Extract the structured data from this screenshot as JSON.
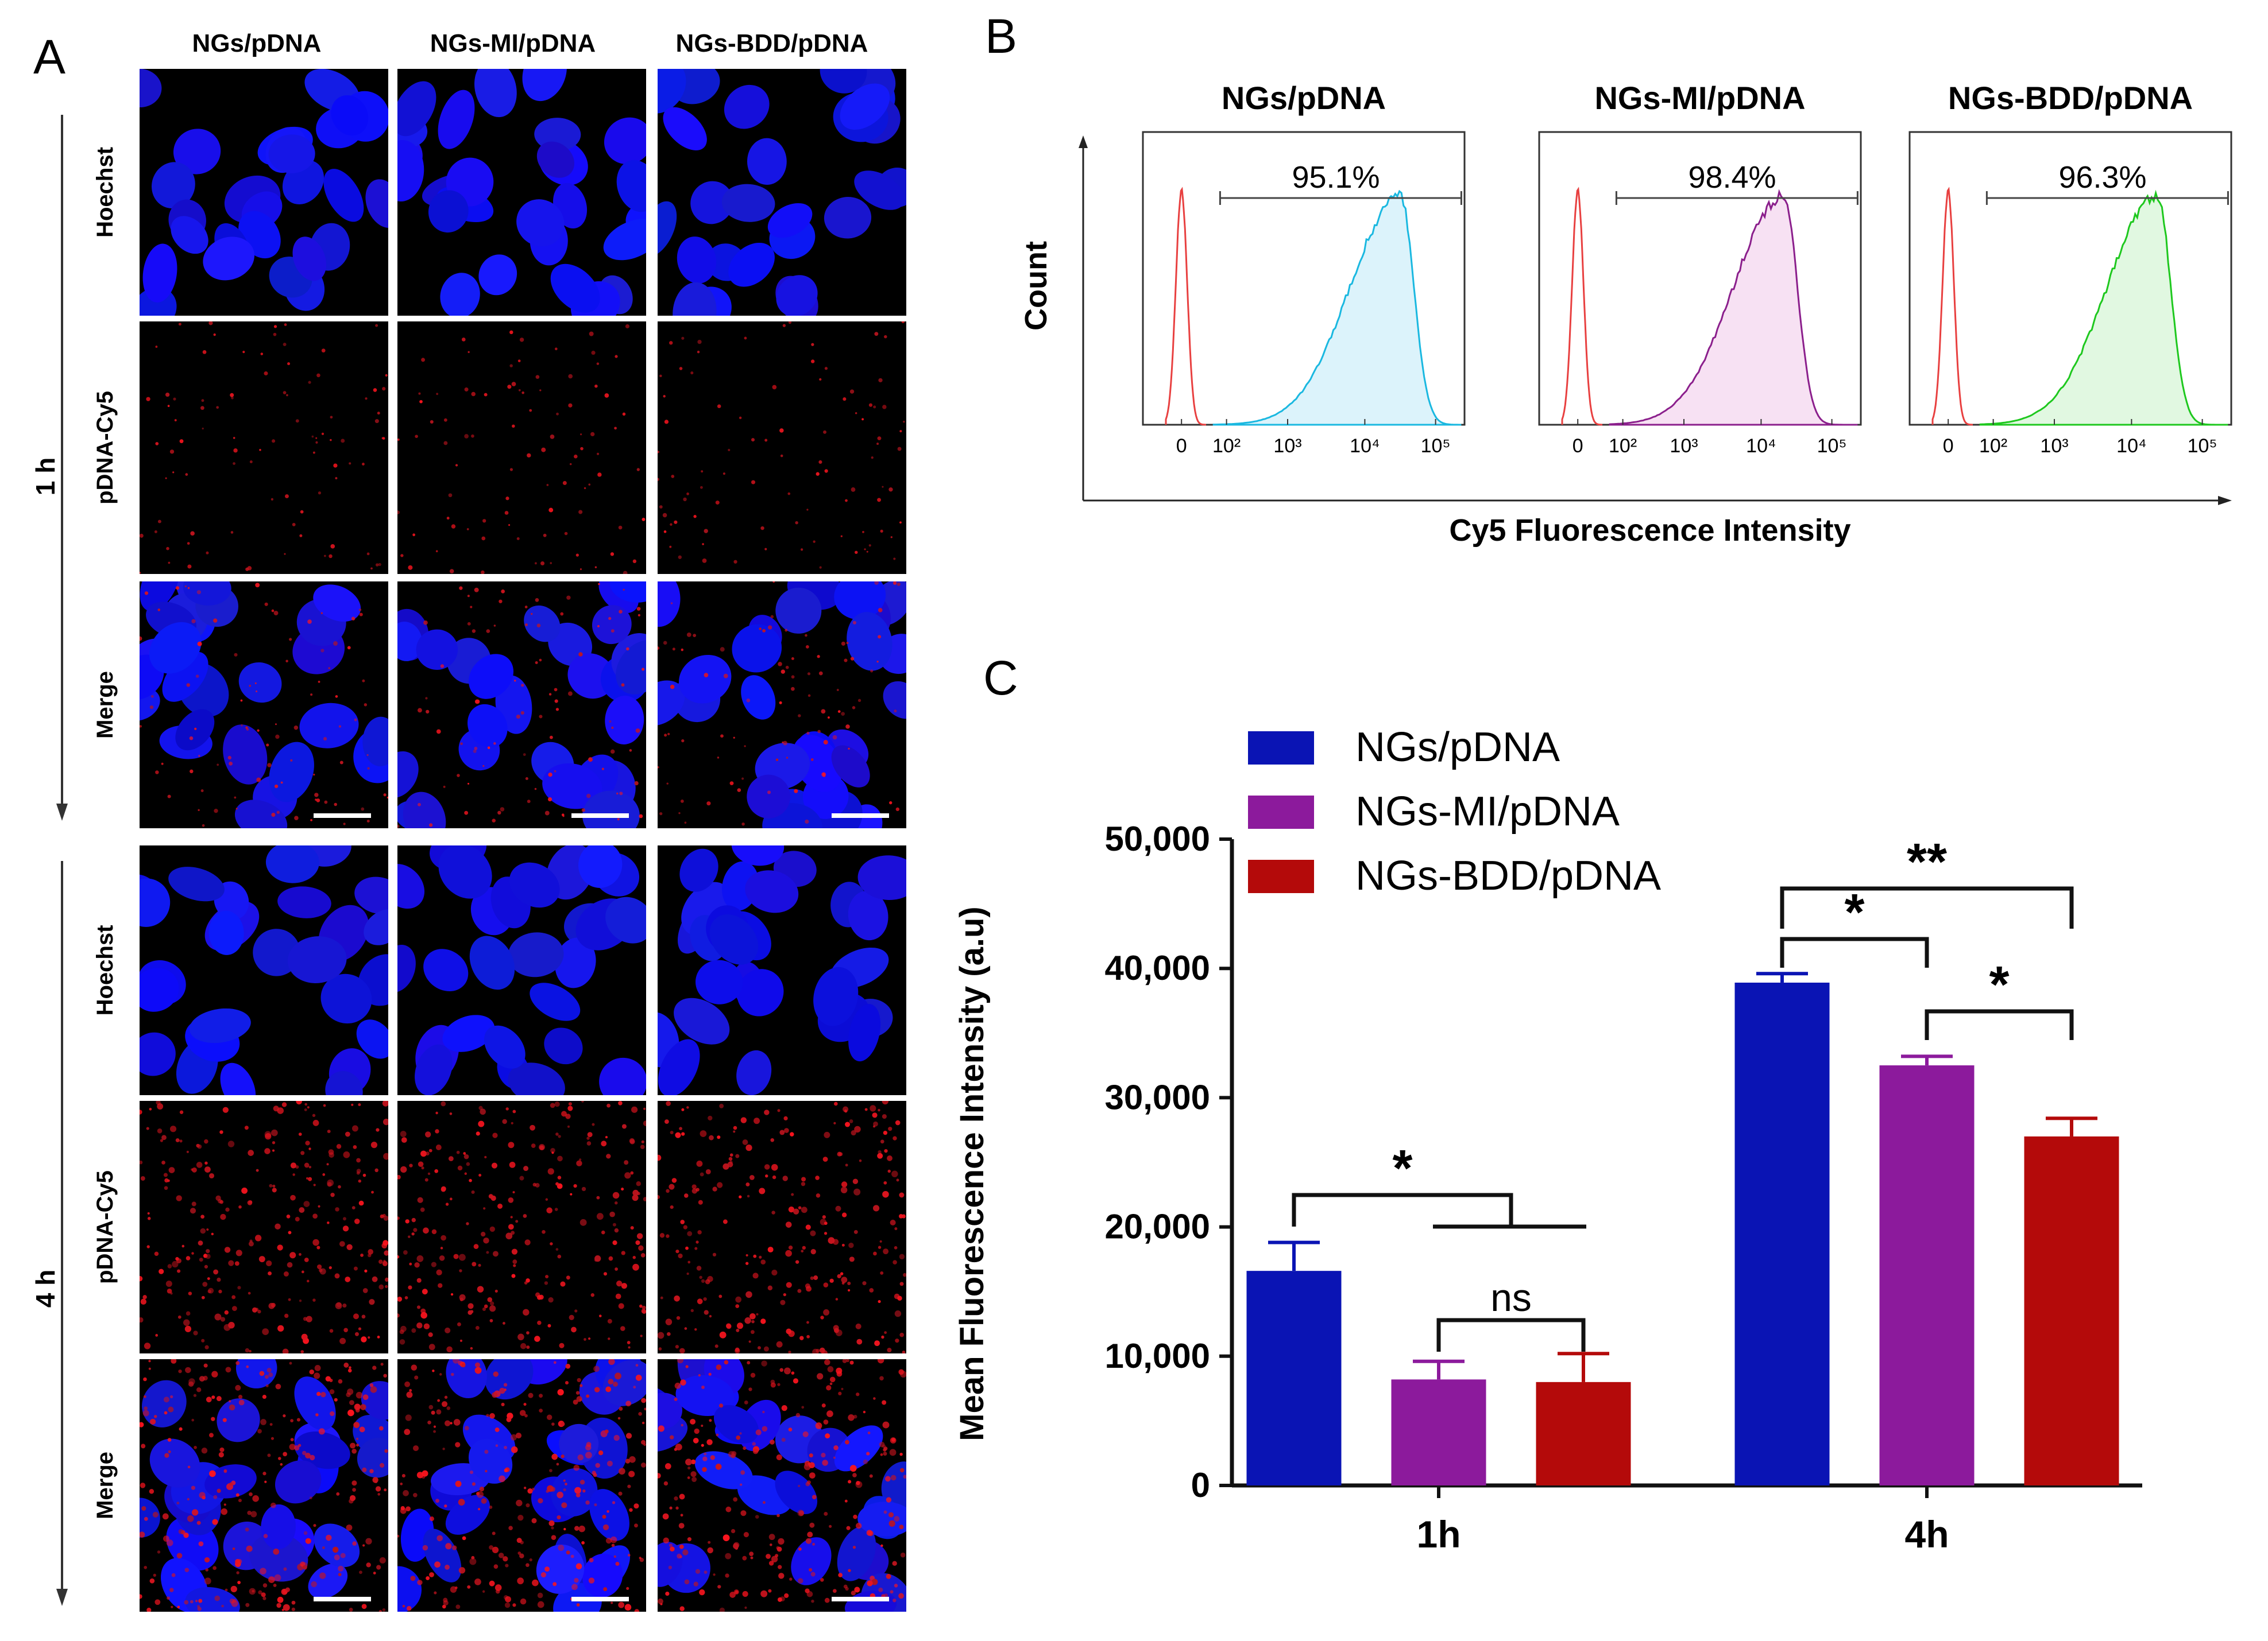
{
  "panel_a": {
    "letter": "A",
    "column_headers": [
      "NGs/pDNA",
      "NGs-MI/pDNA",
      "NGs-BDD/pDNA"
    ],
    "time_labels": [
      "1 h",
      "4 h"
    ],
    "row_labels": [
      "Hoechst",
      "pDNA-Cy5",
      "Merge"
    ]
  },
  "panel_b": {
    "letter": "B",
    "ylabel": "Count",
    "xlabel": "Cy5 Fluorescence Intensity",
    "tick_labels": [
      "0",
      "10²",
      "10³",
      "10⁴",
      "10⁵"
    ],
    "histograms": [
      {
        "title": "NGs/pDNA",
        "percent": "95.1%",
        "color": "#1ab8e0",
        "fill": "#dcf3fb"
      },
      {
        "title": "NGs-MI/pDNA",
        "percent": "98.4%",
        "color": "#8b1f8c",
        "fill": "#f7e1f3"
      },
      {
        "title": "NGs-BDD/pDNA",
        "percent": "96.3%",
        "color": "#1ec81e",
        "fill": "#e1f8e1"
      }
    ],
    "control_color": "#e84040"
  },
  "chart_data": {
    "type": "bar",
    "panel_letter": "C",
    "title": "",
    "categories": [
      "1h",
      "4h"
    ],
    "series": [
      {
        "name": "NGs/pDNA",
        "color": "#0a14b4",
        "values": [
          16600,
          38900
        ],
        "errors": [
          2200,
          700
        ]
      },
      {
        "name": "NGs-MI/pDNA",
        "color": "#8c1a9c",
        "values": [
          8200,
          32500
        ],
        "errors": [
          1400,
          700
        ]
      },
      {
        "name": "NGs-BDD/pDNA",
        "color": "#b40a0a",
        "values": [
          8000,
          27000
        ],
        "errors": [
          2200,
          1400
        ]
      }
    ],
    "ylabel": "Mean Fluorescence Intensity (a.u)",
    "xlabel": "",
    "ylim": [
      0,
      50000
    ],
    "yticks": [
      0,
      10000,
      20000,
      30000,
      40000,
      50000
    ],
    "ytick_labels": [
      "0",
      "10,000",
      "20,000",
      "30,000",
      "40,000",
      "50,000"
    ],
    "legend": "top-left",
    "significance": [
      {
        "label": "*",
        "group": "1h",
        "between": "NGs/pDNA vs NGs-MI/pDNA+NGs-BDD/pDNA"
      },
      {
        "label": "ns",
        "group": "1h",
        "between": "NGs-MI/pDNA vs NGs-BDD/pDNA"
      },
      {
        "label": "**",
        "group": "4h",
        "between": "NGs/pDNA vs NGs-BDD/pDNA"
      },
      {
        "label": "*",
        "group": "4h",
        "between": "NGs/pDNA vs NGs-MI/pDNA"
      },
      {
        "label": "*",
        "group": "4h",
        "between": "NGs-MI/pDNA vs NGs-BDD/pDNA"
      }
    ]
  }
}
